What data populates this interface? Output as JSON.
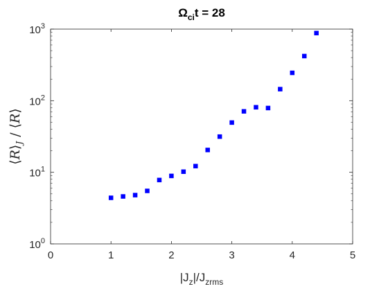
{
  "chart_data": {
    "type": "scatter",
    "title": {
      "main": "Ω",
      "sub": "ci",
      "rest": "t = 28"
    },
    "xlabel": {
      "a": "|J",
      "a_sub": "z",
      "b": "|/J",
      "b_sub": "zrms"
    },
    "ylabel": {
      "l": "⟨",
      "r1": "R",
      "mid": "⟩",
      "sub": "J",
      "slash": " / ⟨",
      "r2": "R",
      "end": "⟩"
    },
    "xlim": [
      0,
      5
    ],
    "ylim": [
      1,
      1000
    ],
    "yscale": "log",
    "grid": false,
    "xticks": [
      "0",
      "1",
      "2",
      "3",
      "4",
      "5"
    ],
    "yticks": [
      {
        "value": 1,
        "base": "10",
        "exp": "0"
      },
      {
        "value": 10,
        "base": "10",
        "exp": "1"
      },
      {
        "value": 100,
        "base": "10",
        "exp": "2"
      },
      {
        "value": 1000,
        "base": "10",
        "exp": "3"
      }
    ],
    "marker_color": "#0000ff",
    "x": [
      1.0,
      1.2,
      1.4,
      1.6,
      1.8,
      2.0,
      2.2,
      2.4,
      2.6,
      2.8,
      3.0,
      3.2,
      3.4,
      3.6,
      3.8,
      4.0,
      4.2,
      4.4
    ],
    "y": [
      4.4,
      4.6,
      4.8,
      5.5,
      7.8,
      8.9,
      10.2,
      12.2,
      20.5,
      31.5,
      49.5,
      71,
      81,
      79,
      145,
      245,
      420,
      880
    ]
  }
}
